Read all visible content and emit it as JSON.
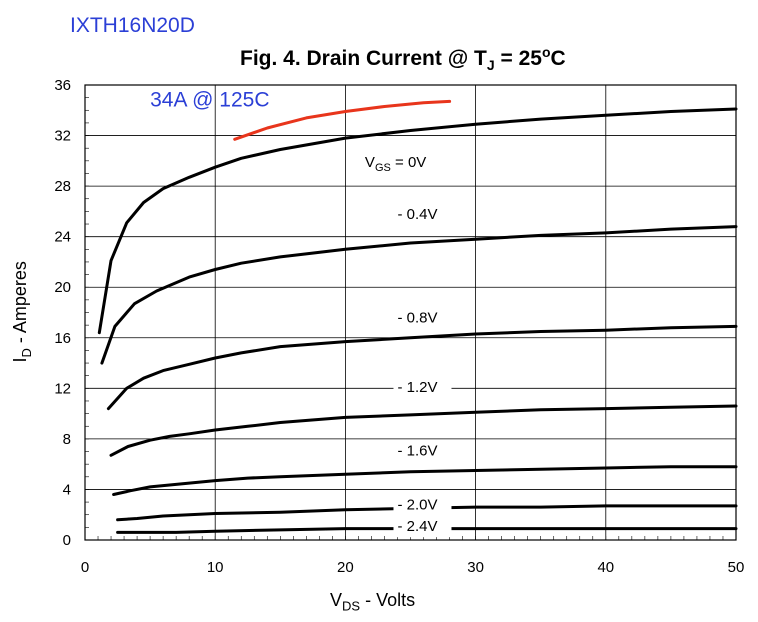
{
  "header": {
    "part_number": "IXTH16N20D",
    "title_prefix": "Fig. 4. Drain Current @ T",
    "title_sub": "J",
    "title_suffix": " = 25",
    "title_deg": "o",
    "title_unit": "C"
  },
  "axes": {
    "ylabel_prefix": "I",
    "ylabel_sub": "D",
    "ylabel_suffix": " - Amperes",
    "xlabel_prefix": "V",
    "xlabel_sub": "DS",
    "xlabel_suffix": " - Volts"
  },
  "chart_data": {
    "type": "line",
    "xlim": [
      0,
      50
    ],
    "ylim": [
      0,
      36
    ],
    "xticks": [
      0,
      10,
      20,
      30,
      40,
      50
    ],
    "yticks": [
      0,
      4,
      8,
      12,
      16,
      20,
      24,
      28,
      32,
      36
    ],
    "grid": true,
    "annotation": {
      "text": "34A @ 125C",
      "x": 5,
      "y": 34.3,
      "color": "#2b3fd6"
    },
    "series": [
      {
        "name": "V_GS = 0V",
        "label": "= 0V",
        "label_prefix": "V",
        "label_sub": "GS",
        "color": "#000000",
        "label_x": 21.5,
        "label_y": 29.5,
        "x": [
          1.1,
          2.0,
          3.2,
          4.5,
          6,
          8,
          10,
          12,
          15,
          20,
          25,
          30,
          35,
          40,
          45,
          50
        ],
        "y": [
          16.4,
          22.1,
          25.1,
          26.7,
          27.8,
          28.7,
          29.5,
          30.2,
          30.9,
          31.8,
          32.4,
          32.9,
          33.3,
          33.6,
          33.9,
          34.1
        ]
      },
      {
        "name": "-0.4V",
        "label": "- 0.4V",
        "color": "#000000",
        "label_x": 24,
        "label_y": 25.4,
        "x": [
          1.3,
          2.3,
          3.8,
          5.5,
          8,
          10,
          12,
          15,
          20,
          25,
          30,
          35,
          40,
          45,
          50
        ],
        "y": [
          14.0,
          16.9,
          18.7,
          19.7,
          20.8,
          21.4,
          21.9,
          22.4,
          23.0,
          23.5,
          23.8,
          24.1,
          24.3,
          24.6,
          24.8
        ]
      },
      {
        "name": "-0.8V",
        "label": "- 0.8V",
        "color": "#000000",
        "label_x": 24,
        "label_y": 17.2,
        "x": [
          1.8,
          3.2,
          4.5,
          6,
          8,
          10,
          12,
          15,
          20,
          25,
          30,
          35,
          40,
          45,
          50
        ],
        "y": [
          10.4,
          12.0,
          12.8,
          13.4,
          13.9,
          14.4,
          14.8,
          15.3,
          15.7,
          16.0,
          16.3,
          16.5,
          16.6,
          16.8,
          16.9
        ]
      },
      {
        "name": "-1.2V",
        "label": "- 1.2V",
        "color": "#000000",
        "label_x": 24,
        "label_y": 11.7,
        "x": [
          2.0,
          3.3,
          5,
          6.5,
          8,
          10,
          12.5,
          15,
          20,
          25,
          30,
          35,
          40,
          45,
          50
        ],
        "y": [
          6.7,
          7.4,
          7.9,
          8.2,
          8.4,
          8.7,
          9.0,
          9.3,
          9.7,
          9.9,
          10.1,
          10.3,
          10.4,
          10.5,
          10.6
        ]
      },
      {
        "name": "-1.6V",
        "label": "- 1.6V",
        "color": "#000000",
        "label_x": 24,
        "label_y": 6.7,
        "x": [
          2.2,
          3.5,
          5,
          7,
          10,
          12.5,
          15,
          20,
          25,
          30,
          35,
          40,
          45,
          50
        ],
        "y": [
          3.6,
          3.9,
          4.2,
          4.4,
          4.7,
          4.9,
          5.0,
          5.2,
          5.4,
          5.5,
          5.6,
          5.7,
          5.8,
          5.8
        ]
      },
      {
        "name": "-2.0V",
        "label": "- 2.0V",
        "color": "#000000",
        "label_x": 24,
        "label_y": 2.4,
        "x": [
          2.5,
          4,
          6,
          10,
          15,
          20,
          25,
          30,
          35,
          40,
          45,
          50
        ],
        "y": [
          1.6,
          1.7,
          1.9,
          2.1,
          2.2,
          2.4,
          2.5,
          2.6,
          2.6,
          2.7,
          2.7,
          2.7
        ]
      },
      {
        "name": "-2.4V",
        "label": "- 2.4V",
        "color": "#000000",
        "label_x": 24,
        "label_y": 0.7,
        "x": [
          2.5,
          4,
          7,
          10,
          15,
          20,
          25,
          30,
          35,
          40,
          45,
          50
        ],
        "y": [
          0.6,
          0.6,
          0.6,
          0.7,
          0.8,
          0.9,
          0.9,
          0.9,
          0.9,
          0.9,
          0.9,
          0.9
        ]
      },
      {
        "name": "125C",
        "label": "",
        "color": "#e8351c",
        "x": [
          11.5,
          14,
          17,
          20,
          23,
          26,
          28
        ],
        "y": [
          31.7,
          32.6,
          33.4,
          33.9,
          34.3,
          34.6,
          34.7
        ]
      }
    ]
  }
}
